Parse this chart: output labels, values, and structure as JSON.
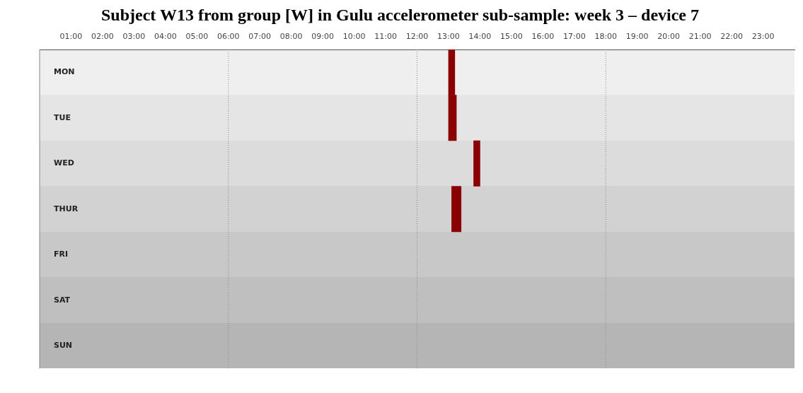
{
  "chart_data": {
    "type": "bar",
    "orientation": "horizontal",
    "title": "Subject W13 from group [W] in Gulu accelerometer sub-sample: week 3 – device 7",
    "categories": [
      "MON",
      "TUE",
      "WED",
      "THUR",
      "FRI",
      "SAT",
      "SUN"
    ],
    "base": [
      13.0,
      13.0,
      13.8,
      13.1,
      null,
      null,
      null
    ],
    "values": [
      0.2,
      0.25,
      0.2,
      0.3,
      null,
      null,
      null
    ],
    "color": "#8b0000",
    "xlim": [
      0,
      24
    ],
    "xticks": [
      {
        "value": 1,
        "label": "01:00"
      },
      {
        "value": 2,
        "label": "02:00"
      },
      {
        "value": 3,
        "label": "03:00"
      },
      {
        "value": 4,
        "label": "04:00"
      },
      {
        "value": 5,
        "label": "05:00"
      },
      {
        "value": 6,
        "label": "06:00"
      },
      {
        "value": 7,
        "label": "07:00"
      },
      {
        "value": 8,
        "label": "08:00"
      },
      {
        "value": 9,
        "label": "09:00"
      },
      {
        "value": 10,
        "label": "10:00"
      },
      {
        "value": 11,
        "label": "11:00"
      },
      {
        "value": 12,
        "label": "12:00"
      },
      {
        "value": 13,
        "label": "13:00"
      },
      {
        "value": 14,
        "label": "14:00"
      },
      {
        "value": 15,
        "label": "15:00"
      },
      {
        "value": 16,
        "label": "16:00"
      },
      {
        "value": 17,
        "label": "17:00"
      },
      {
        "value": 18,
        "label": "18:00"
      },
      {
        "value": 19,
        "label": "19:00"
      },
      {
        "value": 20,
        "label": "20:00"
      },
      {
        "value": 21,
        "label": "21:00"
      },
      {
        "value": 22,
        "label": "22:00"
      },
      {
        "value": 23,
        "label": "23:00"
      }
    ],
    "ref_lines": [
      {
        "axis": "x",
        "value": 6,
        "line_style": "dotted",
        "color": "#888888"
      },
      {
        "axis": "x",
        "value": 12,
        "line_style": "dotted",
        "color": "#888888"
      },
      {
        "axis": "x",
        "value": 18,
        "line_style": "dotted",
        "color": "#888888"
      }
    ],
    "grid": false,
    "legend": false
  }
}
